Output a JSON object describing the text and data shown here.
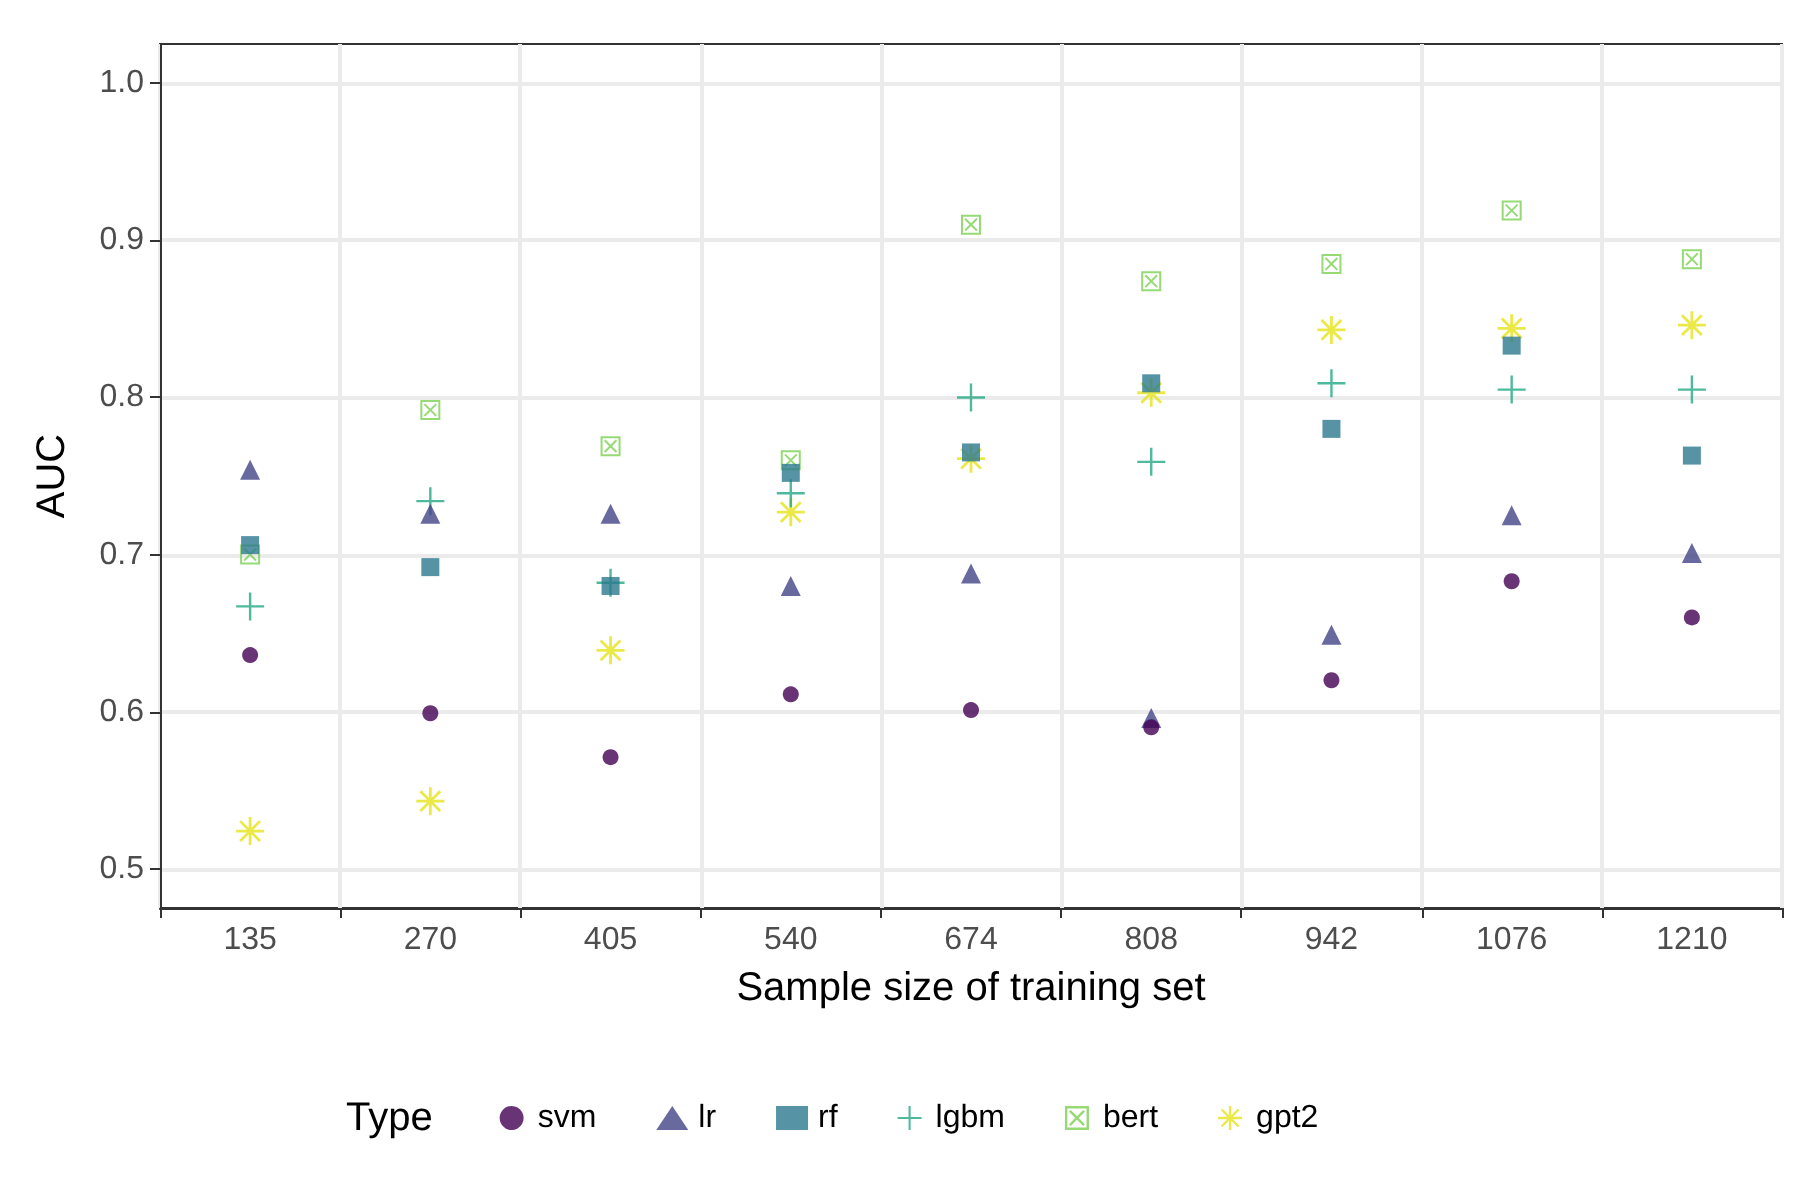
{
  "chart_data": {
    "type": "scatter",
    "xlabel": "Sample size of training set",
    "ylabel": "AUC",
    "legend_title": "Type",
    "legend": "bottom",
    "grid": true,
    "categories": [
      "135",
      "270",
      "405",
      "540",
      "674",
      "808",
      "942",
      "1076",
      "1210"
    ],
    "ylim": [
      0.475,
      1.025
    ],
    "yticks": [
      {
        "value": 0.5,
        "label": "0.5"
      },
      {
        "value": 0.6,
        "label": "0.6"
      },
      {
        "value": 0.7,
        "label": "0.7"
      },
      {
        "value": 0.8,
        "label": "0.8"
      },
      {
        "value": 0.9,
        "label": "0.9"
      },
      {
        "value": 1,
        "label": "1.0"
      }
    ],
    "series": [
      {
        "name": "svm",
        "color": "#440154",
        "marker": "circle",
        "values": [
          0.636,
          0.599,
          0.571,
          0.611,
          0.601,
          0.59,
          0.62,
          0.683,
          0.66
        ]
      },
      {
        "name": "lr",
        "color": "#414487",
        "marker": "triangle",
        "values": [
          0.754,
          0.726,
          0.726,
          0.68,
          0.688,
          0.596,
          0.649,
          0.725,
          0.701
        ]
      },
      {
        "name": "rf",
        "color": "#2a788e",
        "marker": "square",
        "values": [
          0.706,
          0.692,
          0.68,
          0.752,
          0.765,
          0.809,
          0.78,
          0.833,
          0.763
        ]
      },
      {
        "name": "lgbm",
        "color": "#22a884",
        "marker": "cross",
        "values": [
          0.667,
          0.734,
          0.682,
          0.739,
          0.8,
          0.759,
          0.809,
          0.805,
          0.805
        ]
      },
      {
        "name": "bert",
        "color": "#7ad151",
        "marker": "diamond",
        "values": [
          0.7,
          0.792,
          0.769,
          0.76,
          0.91,
          0.874,
          0.885,
          0.919,
          0.888
        ]
      },
      {
        "name": "gpt2",
        "color": "#e5e419",
        "marker": "star",
        "values": [
          0.524,
          0.543,
          0.639,
          0.727,
          0.761,
          0.803,
          0.843,
          0.844,
          0.846
        ]
      }
    ]
  }
}
